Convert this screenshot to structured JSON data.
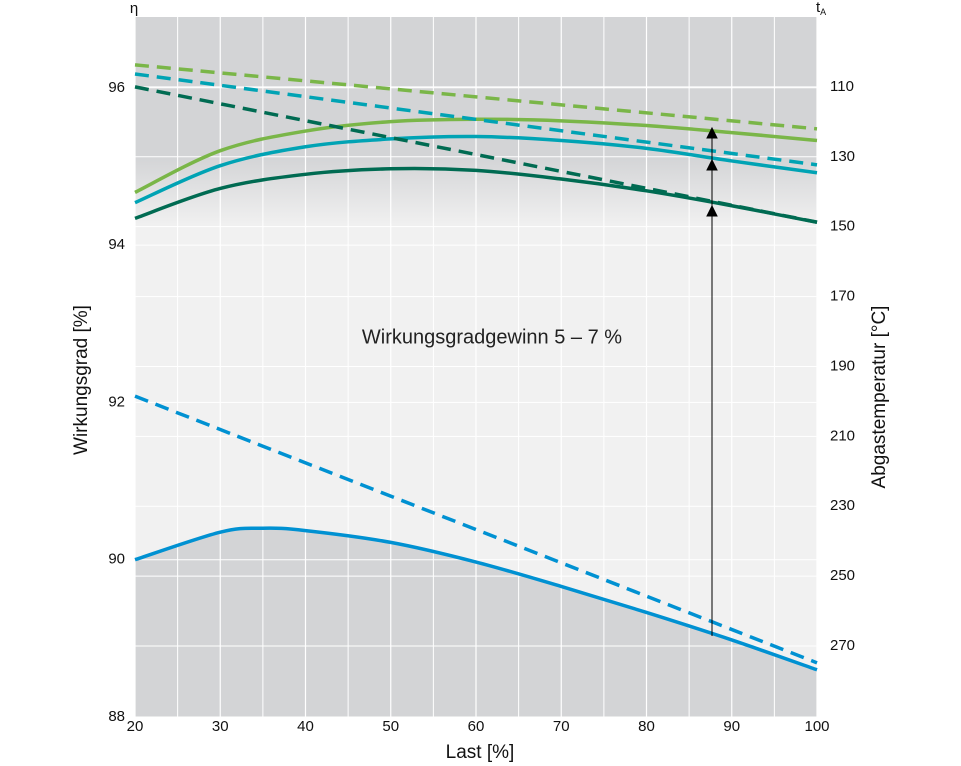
{
  "chart_data": {
    "type": "line",
    "annotation": "Wirkungsgradgewinn 5 – 7 %",
    "x_label": "Last [%]",
    "y_label": "Wirkungsgrad [%]",
    "y2_label": "Abgastemperatur [°C]",
    "y_symbol": "η",
    "y2_symbol": {
      "main": "t",
      "sub": "A"
    },
    "xlim": [
      20,
      100
    ],
    "xticks": [
      20,
      30,
      40,
      50,
      60,
      70,
      80,
      90,
      100
    ],
    "ylim": [
      88,
      96.9
    ],
    "yticks": [
      88,
      90,
      92,
      94,
      96
    ],
    "y2lim": [
      290.3,
      90
    ],
    "y2ticks": [
      110,
      130,
      150,
      170,
      190,
      210,
      230,
      250,
      270
    ],
    "grid": true,
    "series": [
      {
        "color": "#7ab648",
        "dash": false,
        "x": [
          20,
          30,
          40,
          50,
          60,
          70,
          80,
          90,
          100
        ],
        "values": [
          94.67,
          95.2,
          95.45,
          95.57,
          95.6,
          95.58,
          95.52,
          95.43,
          95.33
        ]
      },
      {
        "color": "#00a3b4",
        "dash": false,
        "x": [
          20,
          30,
          40,
          50,
          60,
          70,
          80,
          90,
          100
        ],
        "values": [
          94.54,
          95.01,
          95.25,
          95.35,
          95.38,
          95.33,
          95.23,
          95.07,
          94.92
        ]
      },
      {
        "color": "#006b52",
        "dash": false,
        "x": [
          20,
          30,
          40,
          50,
          60,
          70,
          80,
          90,
          100
        ],
        "values": [
          94.34,
          94.72,
          94.9,
          94.97,
          94.95,
          94.84,
          94.69,
          94.5,
          94.29
        ]
      },
      {
        "color": "#0091d2",
        "dash": false,
        "x": [
          20,
          30,
          35,
          40,
          50,
          60,
          70,
          80,
          90,
          100
        ],
        "values": [
          90.0,
          90.35,
          90.4,
          90.37,
          90.22,
          89.97,
          89.66,
          89.33,
          88.98,
          88.6
        ]
      },
      {
        "color": "#7ab648",
        "dash": true,
        "axis": "y2",
        "x": [
          20,
          100
        ],
        "values": [
          103.7,
          122
        ]
      },
      {
        "color": "#00a3b4",
        "dash": true,
        "axis": "y2",
        "x": [
          20,
          100
        ],
        "values": [
          106.3,
          132.3
        ]
      },
      {
        "color": "#006b52",
        "dash": true,
        "axis": "y2",
        "x": [
          20,
          100
        ],
        "values": [
          110,
          148.7
        ]
      },
      {
        "color": "#0091d2",
        "dash": true,
        "axis": "y2",
        "x": [
          20,
          100
        ],
        "values": [
          198.5,
          274.8
        ]
      }
    ]
  }
}
